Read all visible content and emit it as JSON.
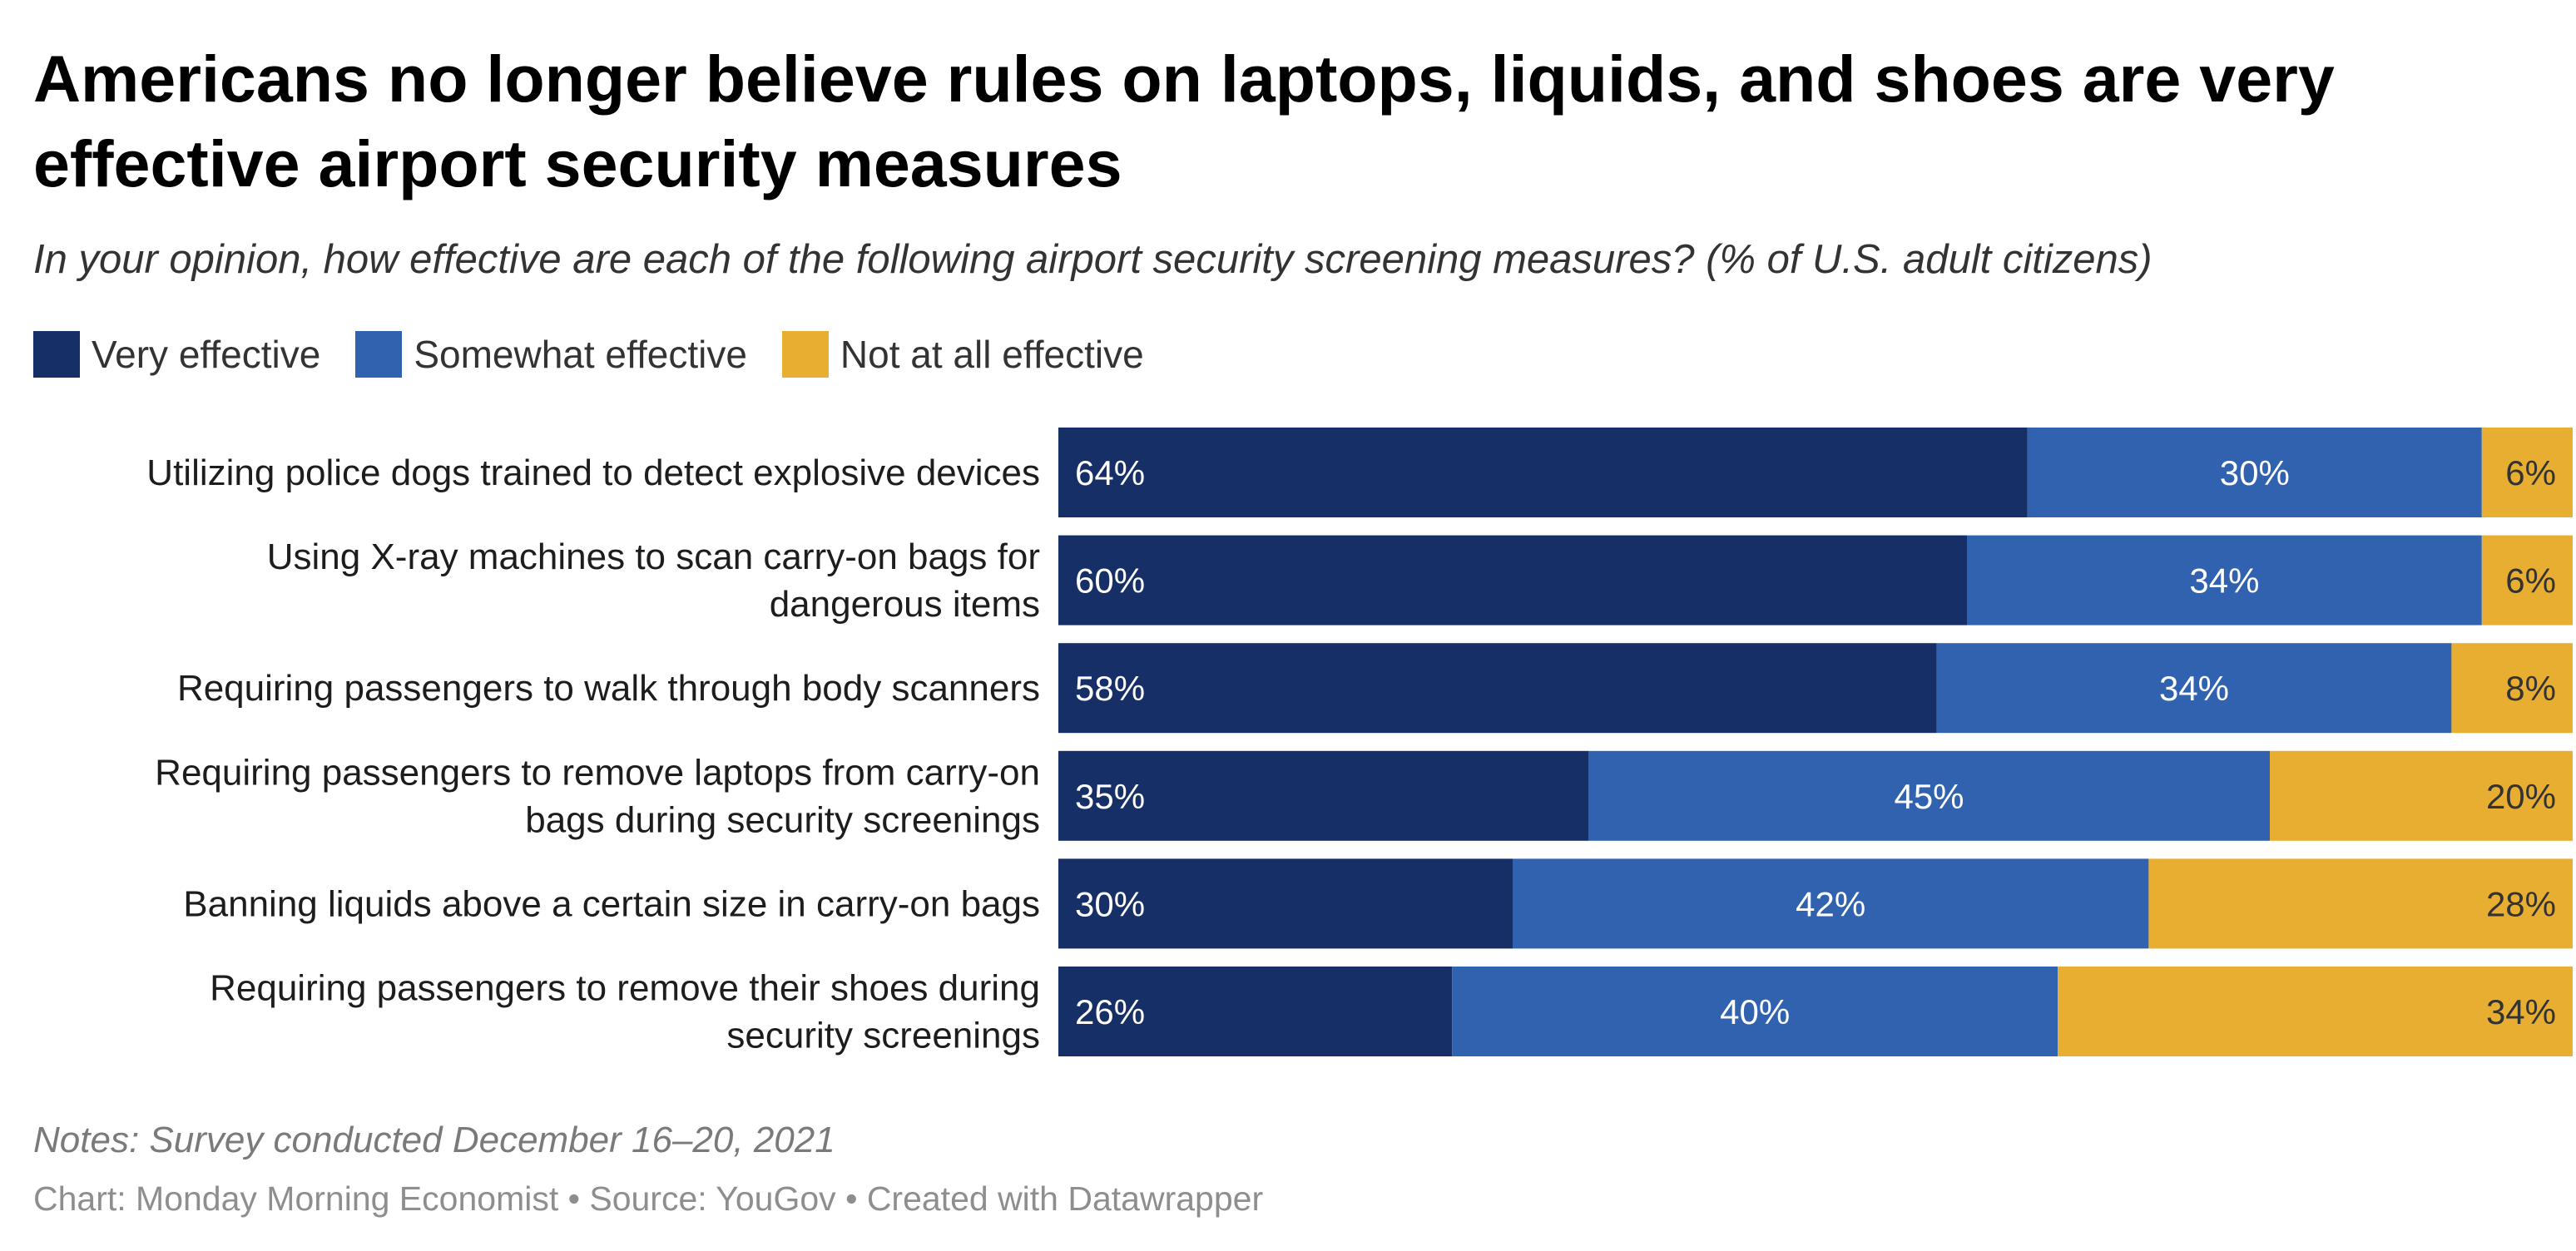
{
  "header": {
    "title": "Americans no longer believe rules on laptops, liquids, and shoes are very effective airport security measures",
    "subtitle": "In your opinion, how effective are each of the following airport security screening measures? (% of U.S. adult citizens)"
  },
  "footer": {
    "notes": "Notes: Survey conducted December 16–20, 2021",
    "credit": "Chart: Monday Morning Economist • Source: YouGov • Created with Datawrapper"
  },
  "chart_data": {
    "type": "bar",
    "orientation": "horizontal",
    "stacked": true,
    "title": "Americans no longer believe rules on laptops, liquids, and shoes are very effective airport security measures",
    "subtitle": "In your opinion, how effective are each of the following airport security screening measures? (% of U.S. adult citizens)",
    "xlim": [
      0,
      100
    ],
    "unit": "%",
    "categories": [
      "Utilizing police dogs trained to detect explosive devices",
      "Using X-ray machines to scan carry-on bags for dangerous items",
      "Requiring passengers to walk through body scanners",
      "Requiring passengers to remove laptops from carry-on bags during security screenings",
      "Banning liquids above a certain size in carry-on bags",
      "Requiring passengers to remove their shoes during security screenings"
    ],
    "category_lines": [
      [
        "Utilizing police dogs trained to detect explosive devices"
      ],
      [
        "Using X-ray machines to scan carry-on bags for",
        "dangerous items"
      ],
      [
        "Requiring passengers to walk through body scanners"
      ],
      [
        "Requiring passengers to remove laptops from carry-on",
        "bags during security screenings"
      ],
      [
        "Banning liquids above a certain size in carry-on bags"
      ],
      [
        "Requiring passengers to remove their shoes during",
        "security screenings"
      ]
    ],
    "series": [
      {
        "name": "Very effective",
        "color": "#172f67",
        "label_color": "#ffffff",
        "values": [
          64,
          60,
          58,
          35,
          30,
          26
        ]
      },
      {
        "name": "Somewhat effective",
        "color": "#3162b0",
        "label_color": "#ffffff",
        "values": [
          30,
          34,
          34,
          45,
          42,
          40
        ]
      },
      {
        "name": "Not at all effective",
        "color": "#e8ae31",
        "label_color": "#333333",
        "values": [
          6,
          6,
          8,
          20,
          28,
          34
        ]
      }
    ],
    "legend_position": "top-left"
  }
}
